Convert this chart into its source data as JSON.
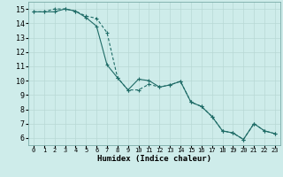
{
  "title": "",
  "xlabel": "Humidex (Indice chaleur)",
  "xlim": [
    -0.5,
    23.5
  ],
  "ylim": [
    5.5,
    15.5
  ],
  "xticks": [
    0,
    1,
    2,
    3,
    4,
    5,
    6,
    7,
    8,
    9,
    10,
    11,
    12,
    13,
    14,
    15,
    16,
    17,
    18,
    19,
    20,
    21,
    22,
    23
  ],
  "yticks": [
    6,
    7,
    8,
    9,
    10,
    11,
    12,
    13,
    14,
    15
  ],
  "bg_color": "#ceecea",
  "line_color": "#1e6b66",
  "grid_major_color": "#b8d8d5",
  "grid_minor_color": "#d0e9e7",
  "line1_x": [
    0,
    1,
    2,
    3,
    4,
    5,
    6,
    7,
    8,
    9,
    10,
    11,
    12,
    13,
    14,
    15,
    16,
    17,
    18,
    19,
    20,
    21,
    22,
    23
  ],
  "line1_y": [
    14.8,
    14.8,
    14.8,
    15.0,
    14.85,
    14.4,
    13.8,
    11.1,
    10.2,
    9.35,
    10.1,
    10.0,
    9.55,
    9.7,
    9.95,
    8.5,
    8.2,
    7.5,
    6.5,
    6.35,
    5.9,
    7.0,
    6.5,
    6.3
  ],
  "line2_x": [
    0,
    1,
    2,
    3,
    4,
    5,
    6,
    7,
    8,
    9,
    10,
    11,
    12,
    13,
    14,
    15,
    16,
    17,
    18,
    19,
    20,
    21,
    22,
    23
  ],
  "line2_y": [
    14.8,
    14.8,
    15.0,
    15.0,
    14.85,
    14.5,
    14.35,
    13.35,
    10.2,
    9.35,
    9.35,
    9.75,
    9.55,
    9.7,
    9.95,
    8.5,
    8.2,
    7.5,
    6.5,
    6.35,
    5.9,
    7.0,
    6.5,
    6.3
  ]
}
